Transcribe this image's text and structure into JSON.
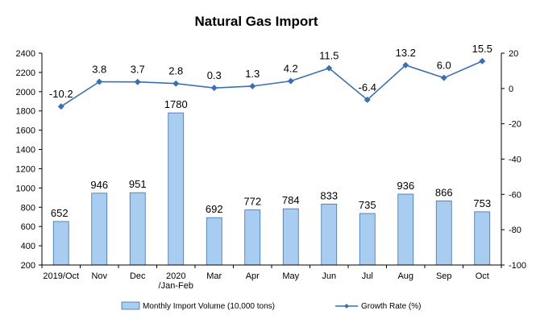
{
  "chart_data": {
    "type": "bar+line",
    "title": "Natural Gas Import",
    "categories": [
      [
        "2019/Oct"
      ],
      [
        "Nov"
      ],
      [
        "Dec"
      ],
      [
        "2020",
        "/Jan-Feb"
      ],
      [
        "Mar"
      ],
      [
        "Apr"
      ],
      [
        "May"
      ],
      [
        "Jun"
      ],
      [
        "Jul"
      ],
      [
        "Aug"
      ],
      [
        "Sep"
      ],
      [
        "Oct"
      ]
    ],
    "series": [
      {
        "name": "Monthly Import Volume (10,000 tons)",
        "type": "bar",
        "axis": "left",
        "color": "#a9cdf0",
        "values": [
          652,
          946,
          951,
          1780,
          692,
          772,
          784,
          833,
          735,
          936,
          866,
          753
        ],
        "labels": [
          "652",
          "946",
          "951",
          "1780",
          "692",
          "772",
          "784",
          "833",
          "735",
          "936",
          "866",
          "753"
        ]
      },
      {
        "name": "Growth Rate (%)",
        "type": "line",
        "axis": "right",
        "color": "#3a6fb0",
        "values": [
          -10.2,
          3.8,
          3.7,
          2.8,
          0.3,
          1.3,
          4.2,
          11.5,
          -6.4,
          13.2,
          6.0,
          15.5
        ],
        "labels": [
          "-10.2",
          "3.8",
          "3.7",
          "2.8",
          "0.3",
          "1.3",
          "4.2",
          "11.5",
          "-6.4",
          "13.2",
          "6.0",
          "15.5"
        ]
      }
    ],
    "y_left": {
      "min": 200,
      "max": 2400,
      "step": 200
    },
    "y_right": {
      "min": -100,
      "max": 20,
      "step": 20
    },
    "legend_position": "bottom"
  }
}
